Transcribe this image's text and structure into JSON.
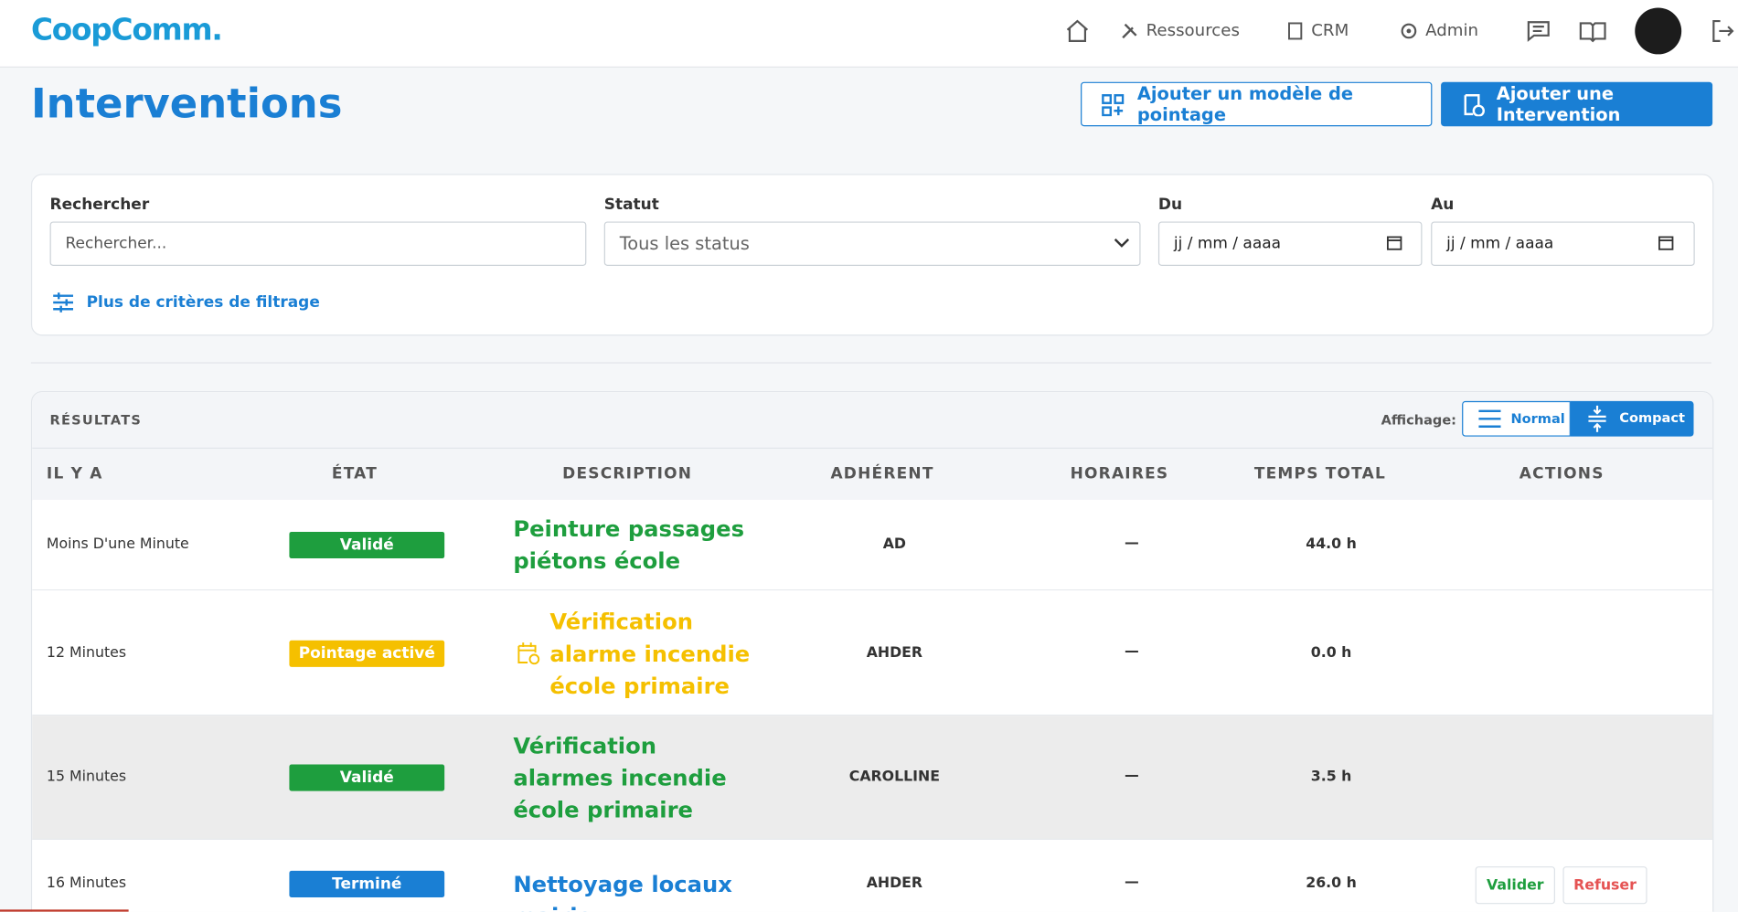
{
  "header": {
    "logo": "CoopComm.",
    "nav": [
      "Ressources",
      "CRM",
      "Admin"
    ]
  },
  "page": {
    "title": "Interventions",
    "buttons": [
      "Ajouter un modèle de pointage",
      "Ajouter une Intervention"
    ]
  },
  "filters": {
    "search_label": "Rechercher",
    "search_placeholder": "Rechercher...",
    "status_label": "Statut",
    "status_value": "Tous les status",
    "from_label": "Du",
    "from_placeholder": "jj / mm / aaaa",
    "to_label": "Au",
    "to_placeholder": "jj / mm / aaaa",
    "more": "Plus de critères de filtrage"
  },
  "results": {
    "title": "RÉSULTATS",
    "display_label": "Affichage:",
    "display_options": [
      "Normal",
      "Compact"
    ]
  },
  "table": {
    "columns": [
      "IL Y A",
      "ÉTAT",
      "DESCRIPTION",
      "ADHÉRENT",
      "HORAIRES",
      "TEMPS TOTAL",
      "ACTIONS"
    ],
    "rows": [
      {
        "time": "Moins D'une Minute",
        "status": "Validé",
        "color": "#1e9e3e",
        "description": "Peinture passages piétons école",
        "member": "AD",
        "schedule": "—",
        "total": "44.0 h"
      },
      {
        "time": "12 Minutes",
        "status": "Pointage activé",
        "color": "#f5c000",
        "description": "Vérification alarme incendie école primaire",
        "member": "AHDER",
        "schedule": "—",
        "total": "0.0 h"
      },
      {
        "time": "15 Minutes",
        "status": "Validé",
        "color": "#1e9e3e",
        "description": "Vérification alarmes incendie école primaire",
        "member": "CAROLLINE",
        "schedule": "—",
        "total": "3.5 h"
      },
      {
        "time": "16 Minutes",
        "status": "Terminé",
        "color": "#1a7fd4",
        "description": "Nettoyage locaux mairie",
        "member": "AHDER",
        "schedule": "—",
        "total": "26.0 h",
        "actions": [
          "Valider",
          "Refuser"
        ]
      }
    ]
  }
}
